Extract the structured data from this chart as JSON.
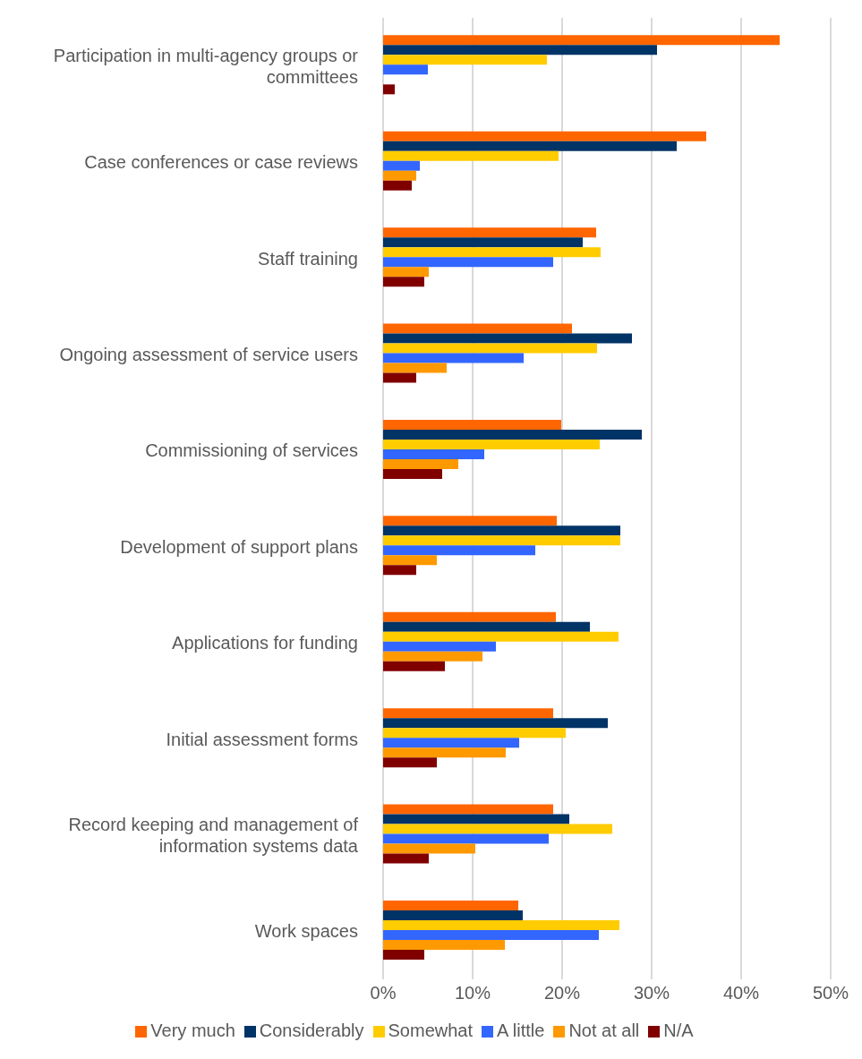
{
  "chart_data": {
    "type": "bar",
    "orientation": "horizontal",
    "categories": [
      "Participation in multi-agency groups or committees",
      "Case conferences or case reviews",
      "Staff training",
      "Ongoing assessment of service users",
      "Commissioning of services",
      "Development of support plans",
      "Applications for funding",
      "Initial assessment forms",
      "Record keeping and management of information systems data",
      "Work spaces"
    ],
    "series": [
      {
        "name": "Very much",
        "color": "#ff6600",
        "values": [
          44.3,
          36.1,
          23.8,
          21.1,
          19.9,
          19.4,
          19.3,
          19.0,
          19.0,
          15.1
        ]
      },
      {
        "name": "Considerably",
        "color": "#003366",
        "values": [
          30.6,
          32.8,
          22.3,
          27.8,
          28.9,
          26.5,
          23.1,
          25.1,
          20.8,
          15.6
        ]
      },
      {
        "name": "Somewhat",
        "color": "#ffcc00",
        "values": [
          18.3,
          19.6,
          24.3,
          23.9,
          24.2,
          26.5,
          26.3,
          20.4,
          25.6,
          26.4
        ]
      },
      {
        "name": "A little",
        "color": "#3366ff",
        "values": [
          5.0,
          4.1,
          19.0,
          15.7,
          11.3,
          17.0,
          12.6,
          15.2,
          18.5,
          24.1
        ]
      },
      {
        "name": "Not at all",
        "color": "#ff9900",
        "values": [
          0,
          3.7,
          5.1,
          7.1,
          8.4,
          6.0,
          11.1,
          13.7,
          10.3,
          13.6
        ]
      },
      {
        "name": "N/A",
        "color": "#800000",
        "values": [
          1.3,
          3.2,
          4.6,
          3.7,
          6.6,
          3.7,
          6.9,
          6.0,
          5.1,
          4.6
        ]
      }
    ],
    "xlim": [
      0,
      50
    ],
    "xticks": [
      {
        "value": 0,
        "label": "0%"
      },
      {
        "value": 10,
        "label": "10%"
      },
      {
        "value": 20,
        "label": "20%"
      },
      {
        "value": 30,
        "label": "30%"
      },
      {
        "value": 40,
        "label": "40%"
      },
      {
        "value": 50,
        "label": "50%"
      }
    ],
    "grid": "x",
    "legend": "bottom"
  }
}
